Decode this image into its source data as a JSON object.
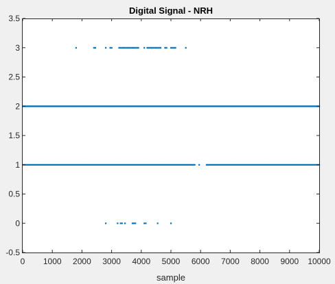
{
  "chart_data": {
    "type": "scatter",
    "title": "Digital Signal - NRH",
    "xlabel": "sample",
    "ylabel": "",
    "xlim": [
      0,
      10000
    ],
    "ylim": [
      -0.5,
      3.5
    ],
    "x_ticks": [
      0,
      1000,
      2000,
      3000,
      4000,
      5000,
      6000,
      7000,
      8000,
      9000,
      10000
    ],
    "x_tick_labels": [
      "0",
      "1000",
      "2000",
      "3000",
      "4000",
      "5000",
      "6000",
      "7000",
      "8000",
      "9000",
      "10000"
    ],
    "y_ticks": [
      -0.5,
      0,
      0.5,
      1,
      1.5,
      2,
      2.5,
      3,
      3.5
    ],
    "y_tick_labels": [
      "-0.5",
      "0",
      "0.5",
      "1",
      "1.5",
      "2",
      "2.5",
      "3",
      "3.5"
    ],
    "grid": false,
    "marker_color": "#0072BD",
    "series": [
      {
        "values": [
          {
            "y": 3,
            "x": [
              1800,
              2400,
              2450,
              2800,
              2950,
              3000,
              3250,
              3300,
              3350,
              3400,
              3450,
              3500,
              3550,
              3600,
              3650,
              3700,
              3750,
              3800,
              3850,
              3900,
              4100,
              4200,
              4250,
              4300,
              4350,
              4400,
              4450,
              4500,
              4550,
              4600,
              4650,
              4800,
              4850,
              5000,
              5050,
              5100,
              5150,
              5500
            ]
          },
          {
            "y": 2,
            "x_range": [
              0,
              10000
            ],
            "dense": true
          },
          {
            "y": 1,
            "x_ranges": [
              [
                0,
                5800
              ],
              [
                6200,
                10000
              ]
            ],
            "dense": true,
            "x_extra": [
              5950
            ]
          },
          {
            "y": 0,
            "x": [
              2800,
              3200,
              3300,
              3350,
              3450,
              3700,
              3750,
              3800,
              4100,
              4150,
              4550,
              5000
            ]
          }
        ]
      }
    ]
  }
}
